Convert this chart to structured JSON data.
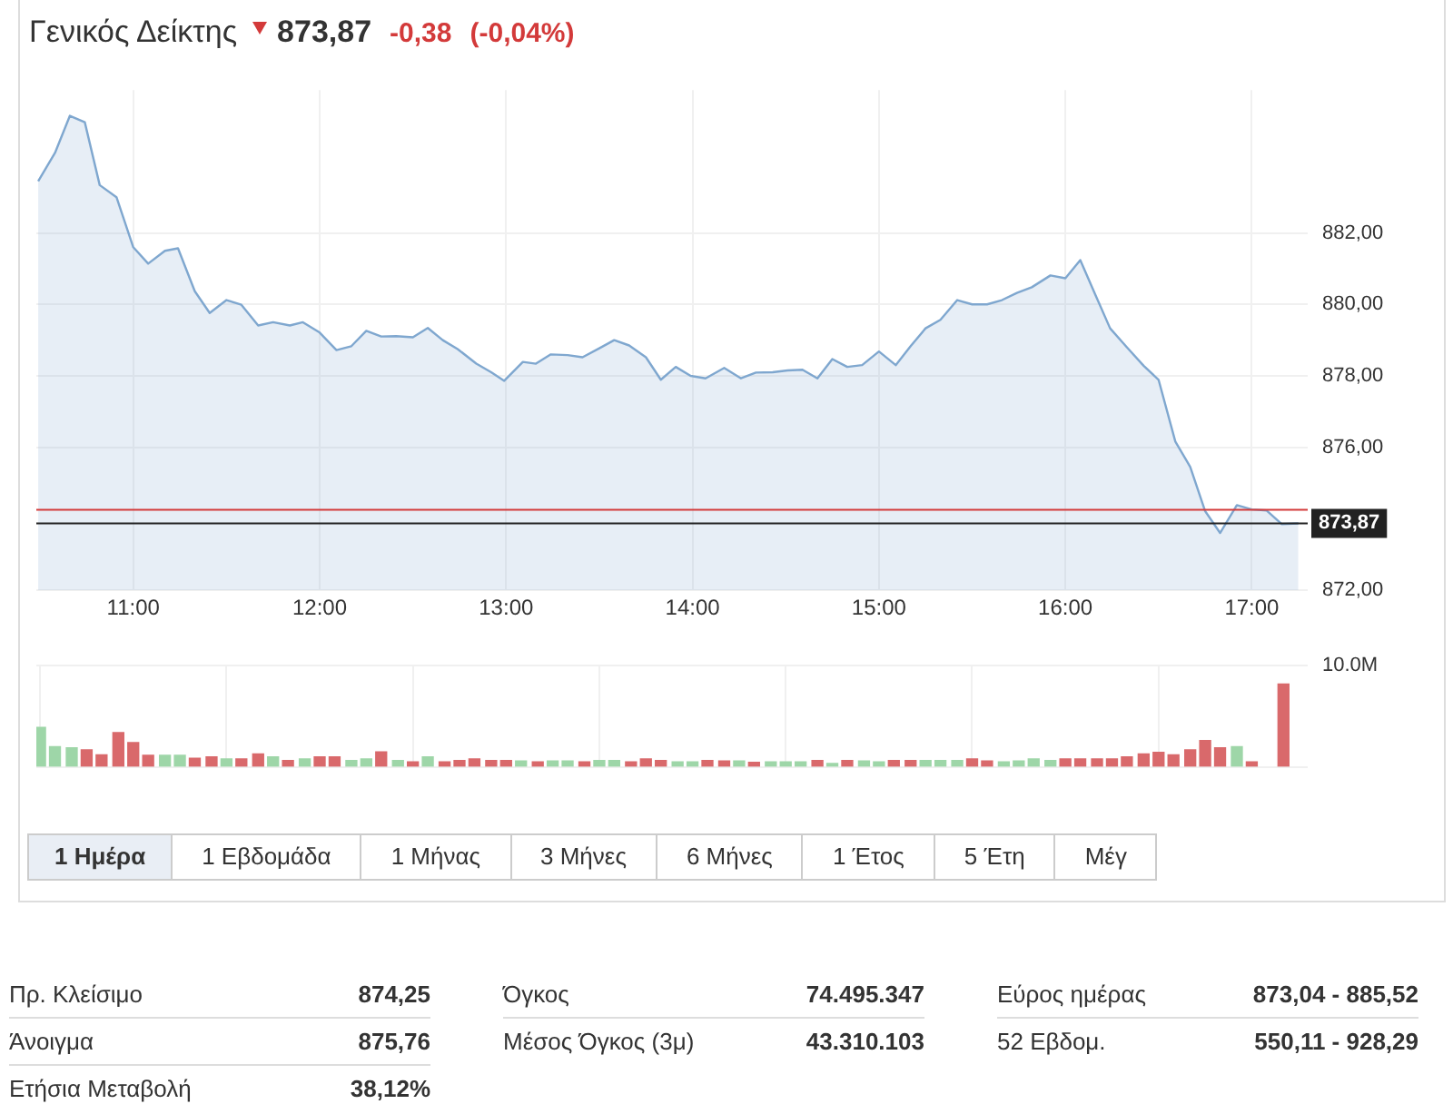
{
  "chart_data": [
    {
      "type": "area",
      "title": "Γενικός Δείκτης",
      "annotations": [
        "873,87",
        "-0,38",
        "(-0,04%)"
      ],
      "color": "#7fa7cf",
      "x": [
        10.49,
        10.58,
        10.66,
        10.74,
        10.82,
        10.91,
        11.0,
        11.08,
        11.17,
        11.24,
        11.33,
        11.41,
        11.5,
        11.58,
        11.67,
        11.75,
        11.84,
        11.91,
        12.0,
        12.09,
        12.17,
        12.25,
        12.33,
        12.41,
        12.5,
        12.58,
        12.66,
        12.74,
        12.84,
        12.92,
        12.99,
        13.09,
        13.16,
        13.24,
        13.33,
        13.41,
        13.5,
        13.58,
        13.66,
        13.75,
        13.83,
        13.91,
        13.99,
        14.07,
        14.17,
        14.26,
        14.34,
        14.43,
        14.51,
        14.59,
        14.67,
        14.75,
        14.83,
        14.91,
        15.0,
        15.09,
        15.17,
        15.25,
        15.33,
        15.42,
        15.5,
        15.58,
        15.66,
        15.74,
        15.82,
        15.92,
        16.0,
        16.08,
        16.16,
        16.24,
        16.33,
        16.42,
        16.5,
        16.59,
        16.67,
        16.75,
        16.83,
        16.92,
        17.0,
        17.08,
        17.16,
        17.25
      ],
      "values": [
        883.45,
        884.24,
        885.28,
        885.1,
        883.34,
        883.0,
        881.6,
        881.14,
        881.5,
        881.57,
        880.37,
        879.76,
        880.12,
        879.99,
        879.41,
        879.5,
        879.41,
        879.5,
        879.21,
        878.72,
        878.83,
        879.26,
        879.1,
        879.11,
        879.08,
        879.34,
        879.0,
        878.75,
        878.34,
        878.1,
        877.86,
        878.39,
        878.34,
        878.6,
        878.58,
        878.52,
        878.77,
        879.0,
        878.85,
        878.52,
        877.89,
        878.25,
        878.0,
        877.93,
        878.22,
        877.93,
        878.09,
        878.1,
        878.15,
        878.17,
        877.93,
        878.47,
        878.25,
        878.3,
        878.68,
        878.3,
        878.83,
        879.33,
        879.57,
        880.12,
        880.0,
        880.0,
        880.12,
        880.32,
        880.48,
        880.81,
        880.73,
        881.24,
        880.28,
        879.33,
        878.8,
        878.28,
        877.89,
        876.16,
        875.45,
        874.21,
        873.6,
        874.38,
        874.26,
        874.23,
        873.85,
        873.87
      ],
      "xlim": [
        10.48,
        17.3
      ],
      "xticks": [
        {
          "value": 11,
          "label": "11:00"
        },
        {
          "value": 12,
          "label": "12:00"
        },
        {
          "value": 13,
          "label": "13:00"
        },
        {
          "value": 14,
          "label": "14:00"
        },
        {
          "value": 15,
          "label": "15:00"
        },
        {
          "value": 16,
          "label": "16:00"
        },
        {
          "value": 17,
          "label": "17:00"
        }
      ],
      "ylim": [
        872,
        886
      ],
      "yticks": [
        {
          "value": 872,
          "label": "872,00"
        },
        {
          "value": 876,
          "label": "876,00"
        },
        {
          "value": 878,
          "label": "878,00"
        },
        {
          "value": 880,
          "label": "880,00"
        },
        {
          "value": 882,
          "label": "882,00"
        }
      ],
      "ref_lines": [
        {
          "axis": "y",
          "value": 874.25,
          "color": "#d33a3a"
        },
        {
          "axis": "y",
          "value": 873.87,
          "label": "873,87",
          "color": "#222222"
        }
      ],
      "grid": true
    },
    {
      "type": "bar",
      "annotations": [
        "1 Ημέρα",
        "1 Εβδομάδα",
        "1 Μήνας",
        "3 Μήνες",
        "6 Μήνες",
        "1 Έτος",
        "5 Έτη",
        "Μέγ"
      ],
      "x": [
        10.5,
        10.58,
        10.67,
        10.75,
        10.83,
        10.92,
        11,
        11.08,
        11.17,
        11.25,
        11.33,
        11.42,
        11.5,
        11.58,
        11.67,
        11.75,
        11.83,
        11.92,
        12,
        12.08,
        12.17,
        12.25,
        12.33,
        12.42,
        12.5,
        12.58,
        12.67,
        12.75,
        12.83,
        12.92,
        13,
        13.08,
        13.17,
        13.25,
        13.33,
        13.42,
        13.5,
        13.58,
        13.67,
        13.75,
        13.83,
        13.92,
        14,
        14.08,
        14.17,
        14.25,
        14.33,
        14.42,
        14.5,
        14.58,
        14.67,
        14.75,
        14.83,
        14.92,
        15,
        15.08,
        15.17,
        15.25,
        15.33,
        15.42,
        15.5,
        15.58,
        15.67,
        15.75,
        15.83,
        15.92,
        16,
        16.08,
        16.17,
        16.25,
        16.33,
        16.42,
        16.5,
        16.58,
        16.67,
        16.75,
        16.83,
        16.92,
        17,
        17.17
      ],
      "values": [
        3.9,
        2.0,
        1.9,
        1.7,
        1.2,
        3.4,
        2.4,
        1.15,
        1.15,
        1.15,
        0.86,
        1.0,
        0.8,
        0.8,
        1.3,
        1.0,
        0.65,
        0.8,
        1.0,
        1.0,
        0.65,
        0.8,
        1.5,
        0.65,
        0.5,
        1.0,
        0.5,
        0.65,
        0.8,
        0.65,
        0.65,
        0.6,
        0.5,
        0.6,
        0.6,
        0.5,
        0.65,
        0.65,
        0.5,
        0.8,
        0.65,
        0.5,
        0.5,
        0.65,
        0.6,
        0.6,
        0.45,
        0.5,
        0.5,
        0.5,
        0.65,
        0.35,
        0.65,
        0.6,
        0.5,
        0.65,
        0.65,
        0.65,
        0.65,
        0.65,
        0.8,
        0.6,
        0.5,
        0.6,
        0.8,
        0.65,
        0.8,
        0.8,
        0.8,
        0.8,
        1.0,
        1.3,
        1.45,
        1.2,
        1.7,
        2.6,
        1.9,
        2.0,
        0.5,
        8.2
      ],
      "colors": [
        "#9ed6a8",
        "#9ed6a8",
        "#9ed6a8",
        "#d9696b",
        "#d9696b",
        "#d9696b",
        "#d9696b",
        "#d9696b",
        "#9ed6a8",
        "#9ed6a8",
        "#d9696b",
        "#d9696b",
        "#9ed6a8",
        "#d9696b",
        "#d9696b",
        "#9ed6a8",
        "#d9696b",
        "#9ed6a8",
        "#d9696b",
        "#d9696b",
        "#9ed6a8",
        "#9ed6a8",
        "#d9696b",
        "#9ed6a8",
        "#d9696b",
        "#9ed6a8",
        "#d9696b",
        "#d9696b",
        "#d9696b",
        "#d9696b",
        "#d9696b",
        "#9ed6a8",
        "#d9696b",
        "#9ed6a8",
        "#9ed6a8",
        "#d9696b",
        "#9ed6a8",
        "#9ed6a8",
        "#d9696b",
        "#d9696b",
        "#d9696b",
        "#9ed6a8",
        "#9ed6a8",
        "#d9696b",
        "#d9696b",
        "#9ed6a8",
        "#d9696b",
        "#9ed6a8",
        "#9ed6a8",
        "#9ed6a8",
        "#d9696b",
        "#9ed6a8",
        "#d9696b",
        "#9ed6a8",
        "#9ed6a8",
        "#d9696b",
        "#d9696b",
        "#9ed6a8",
        "#9ed6a8",
        "#9ed6a8",
        "#d9696b",
        "#d9696b",
        "#9ed6a8",
        "#9ed6a8",
        "#9ed6a8",
        "#9ed6a8",
        "#d9696b",
        "#d9696b",
        "#d9696b",
        "#d9696b",
        "#d9696b",
        "#d9696b",
        "#d9696b",
        "#d9696b",
        "#d9696b",
        "#d9696b",
        "#d9696b",
        "#9ed6a8",
        "#d9696b",
        "#d9696b"
      ],
      "xlim": [
        10.48,
        17.3
      ],
      "xticks": [
        {
          "value": 11,
          "label": null
        },
        {
          "value": 12,
          "label": null
        },
        {
          "value": 13,
          "label": null
        },
        {
          "value": 14,
          "label": null
        },
        {
          "value": 15,
          "label": null
        },
        {
          "value": 16,
          "label": null
        },
        {
          "value": 17,
          "label": null
        }
      ],
      "ylim": [
        0,
        10
      ],
      "yticks": [
        0,
        {
          "value": 10,
          "label": "10.0M"
        }
      ],
      "tick_labels": "y",
      "grid": true
    },
    {
      "type": "other",
      "annotations": [
        "Πρ. Κλείσιμο",
        "874,25",
        "Όγκος",
        "74.495.347",
        "Εύρος ημέρας",
        "873,04 - 885,52",
        "Άνοιγμα",
        "875,76",
        "Μέσος Όγκος (3μ)",
        "43.310.103",
        "52 Εβδομ.",
        "550,11 - 928,29",
        "Ετήσια Μεταβολή",
        "38,12%"
      ]
    }
  ]
}
